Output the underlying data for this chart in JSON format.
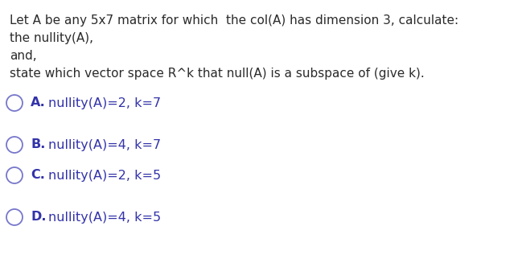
{
  "background_color": "#ffffff",
  "question_lines": [
    "Let A be any 5x7 matrix for which  the col(A) has dimension 3, calculate:",
    "the nullity(A),",
    "and,",
    "state which vector space R^k that null(A) is a subspace of (give k)."
  ],
  "options": [
    {
      "label": "A.",
      "text": "nullity(A)=2, k=7"
    },
    {
      "label": "B.",
      "text": "nullity(A)=4, k=7"
    },
    {
      "label": "C.",
      "text": "nullity(A)=2, k=5"
    },
    {
      "label": "D.",
      "text": "nullity(A)=4, k=5"
    }
  ],
  "question_color": "#2b2b2b",
  "option_label_color": "#3333aa",
  "option_text_color": "#3333aa",
  "circle_color": "#7777cc",
  "question_fontsize": 11.0,
  "option_fontsize": 11.5,
  "fig_width": 6.49,
  "fig_height": 3.22,
  "dpi": 100
}
